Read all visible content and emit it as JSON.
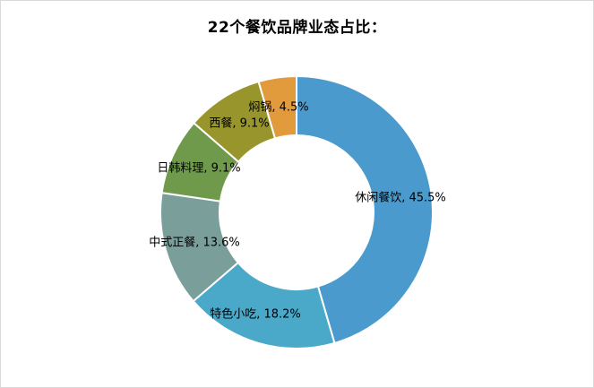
{
  "chart_data": {
    "type": "pie",
    "title": "22个餐饮品牌业态占比：",
    "donut": true,
    "legend": "none",
    "categories": [
      "休闲餐饮",
      "特色小吃",
      "中式正餐",
      "日韩料理",
      "西餐",
      "焖锅"
    ],
    "values": [
      45.5,
      18.2,
      13.6,
      9.1,
      9.1,
      4.5
    ],
    "labels": [
      "休闲餐饮, 45.5%",
      "特色小吃, 18.2%",
      "中式正餐, 13.6%",
      "日韩料理, 9.1%",
      "西餐, 9.1%",
      "焖锅, 4.5%"
    ],
    "colors": [
      "#4a9acd",
      "#4aa8c9",
      "#7a9e9a",
      "#6f9a4c",
      "#97952b",
      "#e19a3c"
    ]
  }
}
